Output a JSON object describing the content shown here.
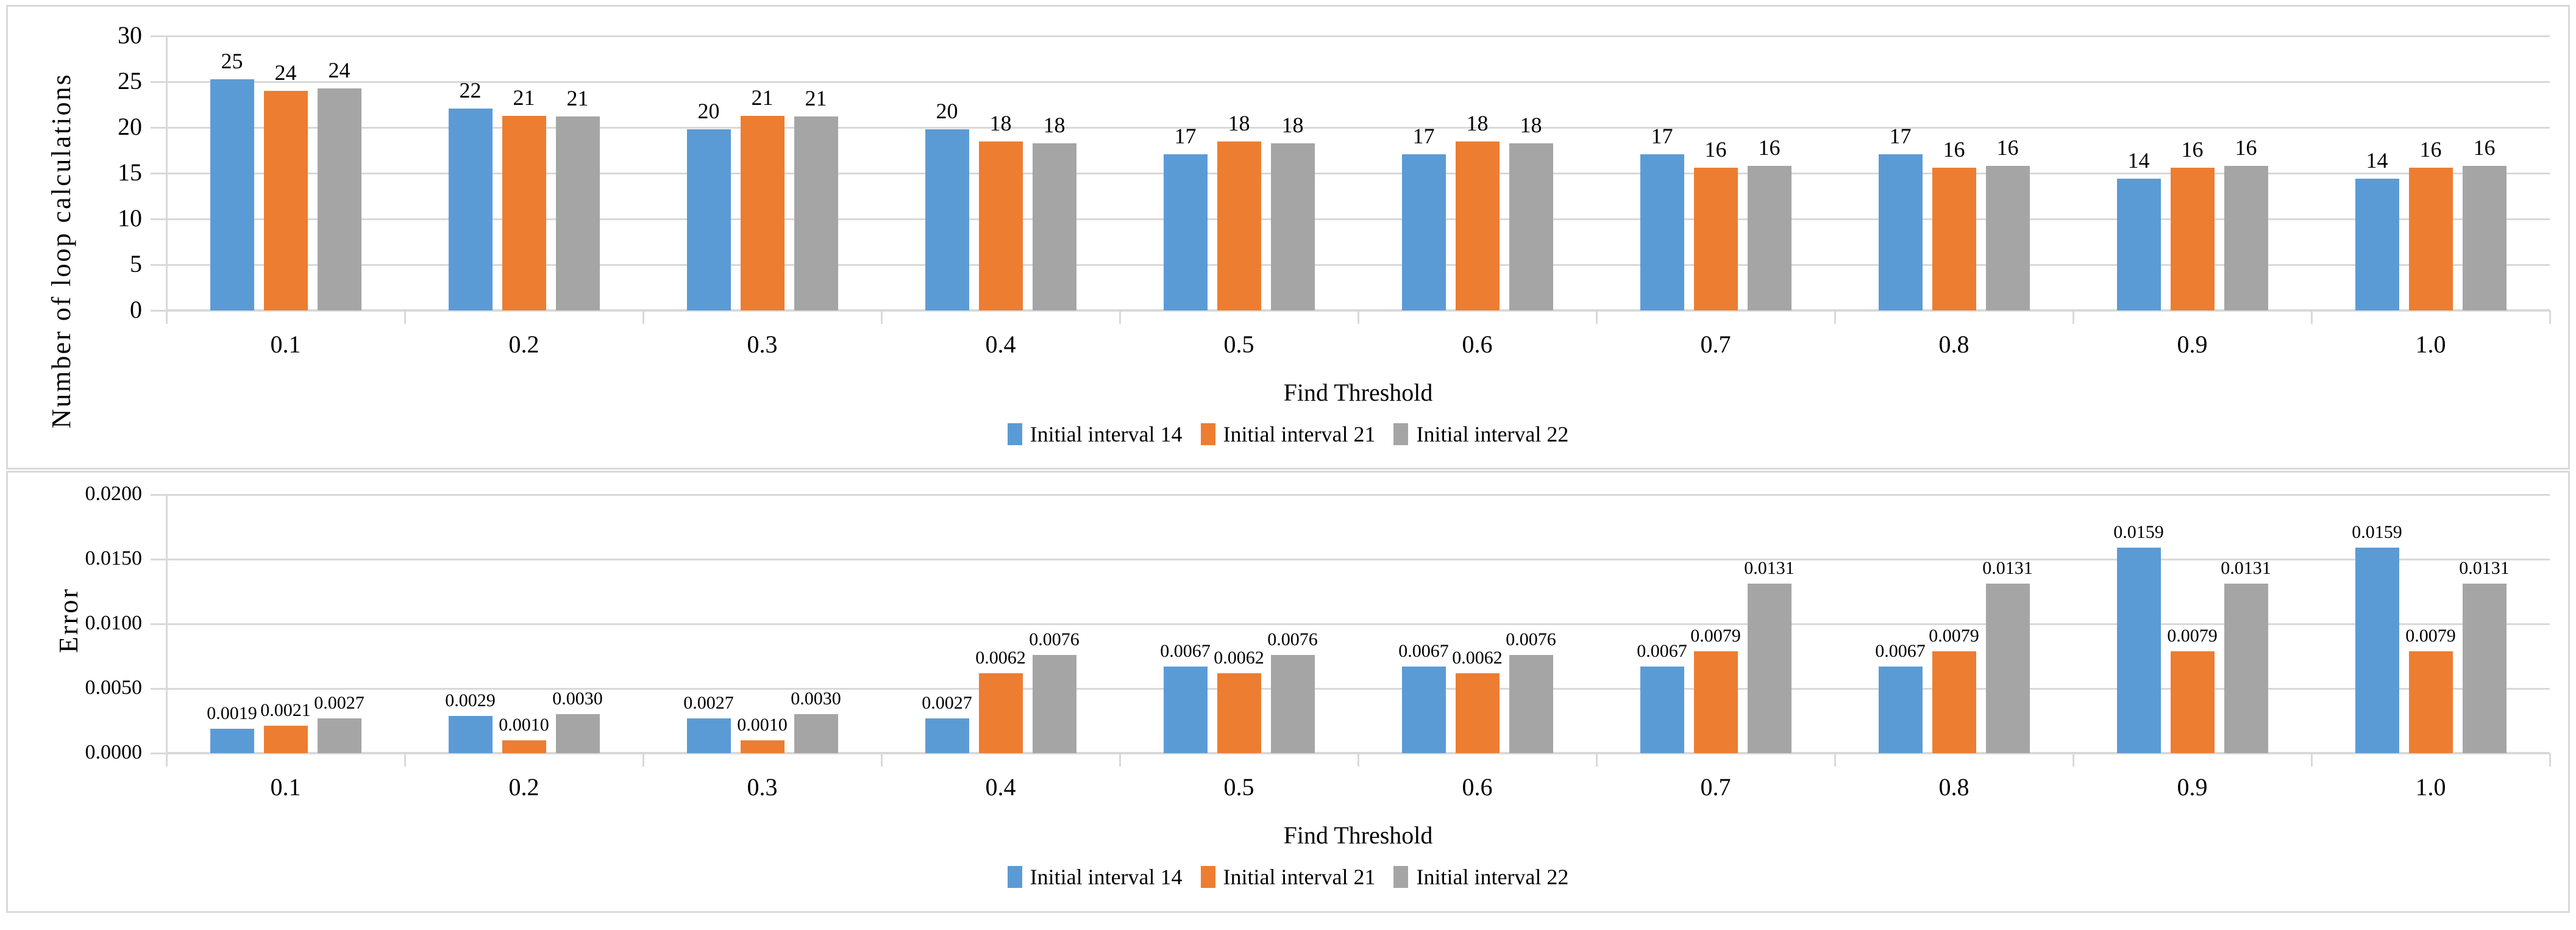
{
  "page": {
    "background": "#ffffff",
    "panel_border_color": "#d9d9d9",
    "gridline_color": "#d9d9d9"
  },
  "chart_data": [
    {
      "type": "bar",
      "title": "",
      "xlabel": "Find Threshold",
      "ylabel": "Number of loop calculations",
      "categories": [
        "0.1",
        "0.2",
        "0.3",
        "0.4",
        "0.5",
        "0.6",
        "0.7",
        "0.8",
        "0.9",
        "1.0"
      ],
      "ylim": [
        0,
        30
      ],
      "ytick_step": 5,
      "ytick_labels": [
        "0",
        "5",
        "10",
        "15",
        "20",
        "25",
        "30"
      ],
      "grid": true,
      "legend_position": "bottom",
      "series": [
        {
          "name": "Initial interval 14",
          "color": "#5B9BD5",
          "values": [
            25.3,
            22.1,
            19.8,
            19.8,
            17.1,
            17.1,
            17.1,
            17.1,
            14.4,
            14.4
          ],
          "data_labels": [
            "25",
            "22",
            "20",
            "20",
            "17",
            "17",
            "17",
            "17",
            "14",
            "14"
          ]
        },
        {
          "name": "Initial interval 21",
          "color": "#ED7D31",
          "values": [
            24.0,
            21.3,
            21.3,
            18.5,
            18.5,
            18.5,
            15.6,
            15.6,
            15.6,
            15.6
          ],
          "data_labels": [
            "24",
            "21",
            "21",
            "18",
            "18",
            "18",
            "16",
            "16",
            "16",
            "16"
          ]
        },
        {
          "name": "Initial interval 22",
          "color": "#A5A5A5",
          "values": [
            24.3,
            21.2,
            21.2,
            18.3,
            18.3,
            18.3,
            15.8,
            15.8,
            15.8,
            15.8
          ],
          "data_labels": [
            "24",
            "21",
            "21",
            "18",
            "18",
            "18",
            "16",
            "16",
            "16",
            "16"
          ]
        }
      ]
    },
    {
      "type": "bar",
      "title": "",
      "xlabel": "Find Threshold",
      "ylabel": "Error",
      "categories": [
        "0.1",
        "0.2",
        "0.3",
        "0.4",
        "0.5",
        "0.6",
        "0.7",
        "0.8",
        "0.9",
        "1.0"
      ],
      "ylim": [
        0,
        0.02
      ],
      "ytick_step": 0.005,
      "ytick_labels": [
        "0.0000",
        "0.0050",
        "0.0100",
        "0.0150",
        "0.0200"
      ],
      "grid": true,
      "legend_position": "bottom",
      "series": [
        {
          "name": "Initial interval 14",
          "color": "#5B9BD5",
          "values": [
            0.0019,
            0.0029,
            0.0027,
            0.0027,
            0.0067,
            0.0067,
            0.0067,
            0.0067,
            0.0159,
            0.0159
          ],
          "data_labels": [
            "0.0019",
            "0.0029",
            "0.0027",
            "0.0027",
            "0.0067",
            "0.0067",
            "0.0067",
            "0.0067",
            "0.0159",
            "0.0159"
          ]
        },
        {
          "name": "Initial interval 21",
          "color": "#ED7D31",
          "values": [
            0.0021,
            0.001,
            0.001,
            0.0062,
            0.0062,
            0.0062,
            0.0079,
            0.0079,
            0.0079,
            0.0079
          ],
          "data_labels": [
            "0.0021",
            "0.0010",
            "0.0010",
            "0.0062",
            "0.0062",
            "0.0062",
            "0.0079",
            "0.0079",
            "0.0079",
            "0.0079"
          ]
        },
        {
          "name": "Initial interval 22",
          "color": "#A5A5A5",
          "values": [
            0.0027,
            0.003,
            0.003,
            0.0076,
            0.0076,
            0.0076,
            0.0131,
            0.0131,
            0.0131,
            0.0131
          ],
          "data_labels": [
            "0.0027",
            "0.0030",
            "0.0030",
            "0.0076",
            "0.0076",
            "0.0076",
            "0.0131",
            "0.0131",
            "0.0131",
            "0.0131"
          ]
        }
      ]
    }
  ]
}
